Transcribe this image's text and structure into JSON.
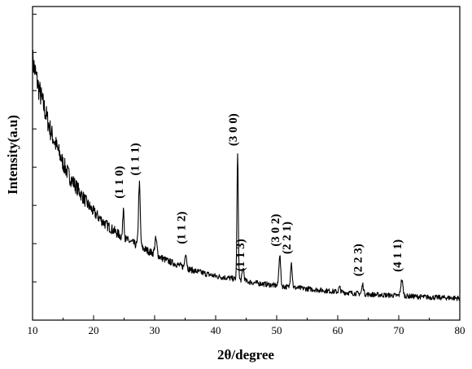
{
  "chart_data": {
    "type": "line",
    "title": "",
    "xlabel": "2θ/degree",
    "ylabel": "Intensity(a.u)",
    "xlim": [
      10,
      80
    ],
    "ylim": [
      0,
      1
    ],
    "x_ticks": [
      10,
      20,
      30,
      40,
      50,
      60,
      70,
      80
    ],
    "y_tick_labels": false,
    "grid": false,
    "legend": "none",
    "line_color": "#000000",
    "series": [
      {
        "values_note": "",
        "baseline": [
          [
            10,
            0.83
          ],
          [
            11,
            0.74
          ],
          [
            12,
            0.67
          ],
          [
            13,
            0.6
          ],
          [
            14,
            0.55
          ],
          [
            15,
            0.5
          ],
          [
            16,
            0.46
          ],
          [
            17,
            0.43
          ],
          [
            18,
            0.4
          ],
          [
            19,
            0.37
          ],
          [
            20,
            0.345
          ],
          [
            21,
            0.325
          ],
          [
            22,
            0.305
          ],
          [
            23,
            0.29
          ],
          [
            24,
            0.275
          ],
          [
            25,
            0.26
          ],
          [
            26,
            0.25
          ],
          [
            27,
            0.24
          ],
          [
            28,
            0.23
          ],
          [
            29,
            0.22
          ],
          [
            30,
            0.21
          ],
          [
            32,
            0.19
          ],
          [
            34,
            0.175
          ],
          [
            36,
            0.16
          ],
          [
            38,
            0.15
          ],
          [
            40,
            0.14
          ],
          [
            42,
            0.135
          ],
          [
            44,
            0.128
          ],
          [
            46,
            0.12
          ],
          [
            48,
            0.115
          ],
          [
            50,
            0.11
          ],
          [
            52,
            0.105
          ],
          [
            55,
            0.1
          ],
          [
            60,
            0.09
          ],
          [
            65,
            0.082
          ],
          [
            70,
            0.078
          ],
          [
            75,
            0.073
          ],
          [
            80,
            0.07
          ]
        ],
        "peaks": [
          [
            24.9,
            0.1,
            0.15
          ],
          [
            27.5,
            0.2,
            0.2
          ],
          [
            30.2,
            0.05,
            0.25
          ],
          [
            35.1,
            0.05,
            0.2
          ],
          [
            43.6,
            0.4,
            0.15
          ],
          [
            44.5,
            0.04,
            0.2
          ],
          [
            50.5,
            0.1,
            0.2
          ],
          [
            52.4,
            0.08,
            0.2
          ],
          [
            60.3,
            0.015,
            0.2
          ],
          [
            64.1,
            0.03,
            0.2
          ],
          [
            70.5,
            0.05,
            0.25
          ]
        ]
      }
    ],
    "annotations": [
      {
        "text": "(1 1 0)",
        "x": 24.9
      },
      {
        "text": "(1 1 1)",
        "x": 27.5
      },
      {
        "text": "(1 1 2)",
        "x": 35.1
      },
      {
        "text": "(3 0 0)",
        "x": 43.6
      },
      {
        "text": "(1 1 3)",
        "x": 44.8
      },
      {
        "text": "(3 0 2)",
        "x": 50.5
      },
      {
        "text": "(2 2 1)",
        "x": 52.4
      },
      {
        "text": "(2 2 3)",
        "x": 64.1
      },
      {
        "text": "(4 1 1)",
        "x": 70.5
      }
    ]
  }
}
